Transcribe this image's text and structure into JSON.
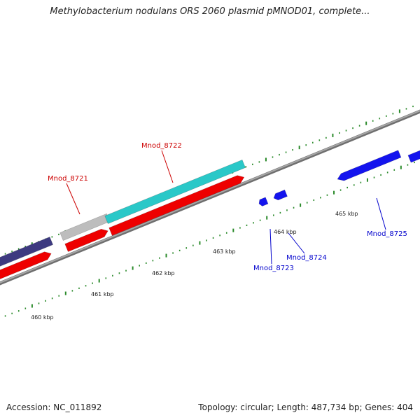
{
  "title": "Methylobacterium nodulans ORS 2060 plasmid pMNOD01, complete...",
  "footer": {
    "accession": "Accession: NC_011892",
    "summary": "Topology: circular; Length: 487,734 bp; Genes: 404"
  },
  "colors": {
    "background": "#ffffff",
    "backbone": "#8a8a8a",
    "tick": "#2a8a2a",
    "forward_label": "#cc0000",
    "reverse_label": "#0000cc",
    "gene_red": "#ee0000",
    "gene_cyan": "#2ac8c8",
    "gene_grey": "#bdbdbd",
    "gene_purple": "#3d3a80",
    "gene_blue": "#1414ee"
  },
  "kbp_labels": [
    "460 kbp",
    "461 kbp",
    "462 kbp",
    "463 kbp",
    "464 kbp",
    "465 kbp"
  ],
  "gene_labels": [
    {
      "id": "Mnod_8721",
      "text": "Mnod_8721",
      "strand": "forward"
    },
    {
      "id": "Mnod_8722",
      "text": "Mnod_8722",
      "strand": "forward"
    },
    {
      "id": "Mnod_8723",
      "text": "Mnod_8723",
      "strand": "reverse"
    },
    {
      "id": "Mnod_8724",
      "text": "Mnod_8724",
      "strand": "reverse"
    },
    {
      "id": "Mnod_8725",
      "text": "Mnod_8725",
      "strand": "reverse"
    }
  ]
}
